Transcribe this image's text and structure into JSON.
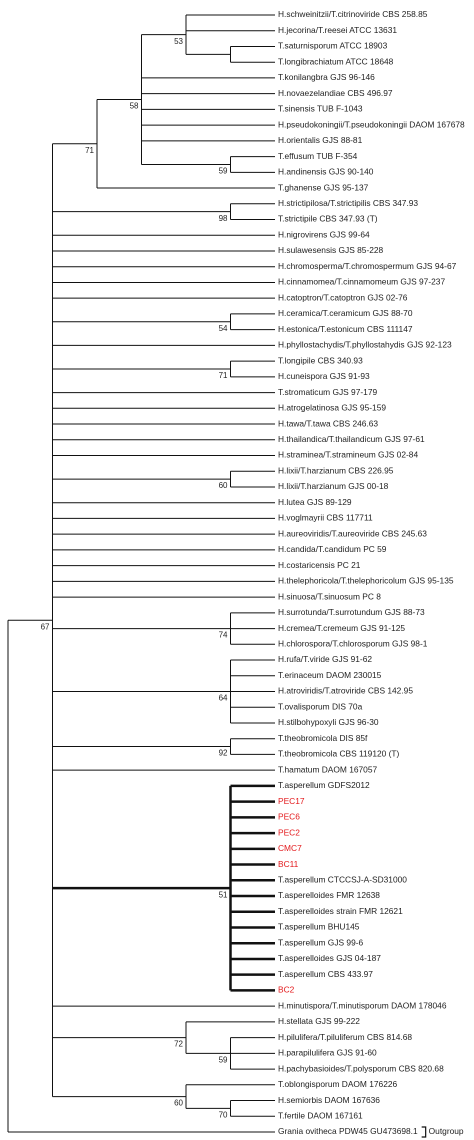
{
  "tree": {
    "outgroup_label": "Outgroup",
    "children": [
      {
        "support": "67",
        "children": [
          {
            "support": "71",
            "children": [
              {
                "support": "58",
                "children": [
                  {
                    "support": "53",
                    "children": [
                      {
                        "label": "H.schweinitzii/T.citrinoviride CBS 258.85"
                      },
                      {
                        "label": "H.jecorina/T.reesei ATCC 13631"
                      },
                      {
                        "children": [
                          {
                            "label": "T.saturnisporum ATCC 18903"
                          },
                          {
                            "label": "T.longibrachiatum ATCC 18648"
                          }
                        ]
                      }
                    ]
                  },
                  {
                    "label": "T.konilangbra GJS 96-146"
                  },
                  {
                    "label": "H.novaezelandiae CBS 496.97"
                  },
                  {
                    "label": "T.sinensis TUB F-1043"
                  },
                  {
                    "label": "H.pseudokoningii/T.pseudokoningii DAOM 167678"
                  },
                  {
                    "label": "H.orientalis GJS 88-81"
                  },
                  {
                    "support": "59",
                    "children": [
                      {
                        "label": "T.effusum TUB F-354"
                      },
                      {
                        "label": "H.andinensis GJS 90-140"
                      }
                    ]
                  }
                ]
              },
              {
                "label": "T.ghanense GJS 95-137"
              }
            ]
          },
          {
            "support": "98",
            "children": [
              {
                "label": "H.strictipilosa/T.strictipilis CBS 347.93"
              },
              {
                "label": "T.strictipile CBS 347.93 (T)"
              }
            ]
          },
          {
            "label": "H.nigrovirens GJS 99-64"
          },
          {
            "label": "H.sulawesensis GJS 85-228"
          },
          {
            "label": "H.chromosperma/T.chromospermum GJS 94-67"
          },
          {
            "label": "H.cinnamomea/T.cinnamomeum GJS 97-237"
          },
          {
            "label": "H.catoptron/T.catoptron GJS 02-76"
          },
          {
            "support": "54",
            "children": [
              {
                "label": "H.ceramica/T.ceramicum GJS 88-70"
              },
              {
                "label": "H.estonica/T.estonicum CBS 111147"
              }
            ]
          },
          {
            "label": "H.phyllostachydis/T.phyllostahydis GJS 92-123"
          },
          {
            "support": "71",
            "children": [
              {
                "label": "T.longipile CBS 340.93"
              },
              {
                "label": "H.cuneispora GJS 91-93"
              }
            ]
          },
          {
            "label": "T.stromaticum GJS 97-179"
          },
          {
            "label": "H.atrogelatinosa GJS 95-159"
          },
          {
            "label": "H.tawa/T.tawa CBS 246.63"
          },
          {
            "label": "H.thailandica/T.thailandicum GJS 97-61"
          },
          {
            "label": "H.straminea/T.stramineum GJS 02-84"
          },
          {
            "support": "60",
            "children": [
              {
                "label": "H.lixii/T.harzianum CBS 226.95"
              },
              {
                "label": "H.lixii/T.harzianum GJS 00-18"
              }
            ]
          },
          {
            "label": "H.lutea GJS 89-129"
          },
          {
            "label": "H.voglmayrii CBS 117711"
          },
          {
            "label": "H.aureoviridis/T.aureoviride CBS 245.63"
          },
          {
            "label": "H.candida/T.candidum PC 59"
          },
          {
            "label": "H.costaricensis PC 21"
          },
          {
            "label": "H.thelephoricola/T.thelephoricolum GJS 95-135"
          },
          {
            "label": "H.sinuosa/T.sinuosum PC 8"
          },
          {
            "support": "74",
            "children": [
              {
                "label": "H.surrotunda/T.surrotundum GJS 88-73"
              },
              {
                "label": "H.cremea/T.cremeum GJS 91-125"
              },
              {
                "label": "H.chlorospora/T.chlorosporum GJS 98-1"
              }
            ]
          },
          {
            "support": "64",
            "children": [
              {
                "label": "H.rufa/T.viride GJS 91-62"
              },
              {
                "label": "T.erinaceum DAOM 230015"
              },
              {
                "label": "H.atroviridis/T.atroviride CBS 142.95"
              },
              {
                "label": "T.ovalisporum DIS 70a"
              },
              {
                "label": "H.stilbohypoxyli GJS 96-30"
              }
            ]
          },
          {
            "support": "92",
            "children": [
              {
                "label": "T.theobromicola DIS 85f"
              },
              {
                "label": "T.theobromicola CBS 119120 (T)"
              }
            ]
          },
          {
            "label": "T.hamatum DAOM 167057"
          },
          {
            "support": "51",
            "bold": true,
            "children": [
              {
                "label": "T.asperellum GDFS2012"
              },
              {
                "label": "PEC17",
                "color": "#e3191c"
              },
              {
                "label": "PEC6",
                "color": "#e3191c"
              },
              {
                "label": "PEC2",
                "color": "#e3191c"
              },
              {
                "label": "CMC7",
                "color": "#e3191c"
              },
              {
                "label": "BC11",
                "color": "#e3191c"
              },
              {
                "label": "T.asperellum CTCCSJ-A-SD31000"
              },
              {
                "label": "T.asperelloides FMR 12638"
              },
              {
                "label": "T.asperelloides strain FMR 12621"
              },
              {
                "label": "T.asperellum BHU145"
              },
              {
                "label": "T.asperellum GJS 99-6"
              },
              {
                "label": "T.asperelloides GJS 04-187"
              },
              {
                "label": "T.asperellum CBS 433.97"
              },
              {
                "label": "BC2",
                "color": "#e3191c"
              }
            ]
          },
          {
            "label": "H.minutispora/T.minutisporum DAOM 178046"
          },
          {
            "support": "72",
            "children": [
              {
                "label": "H.stellata GJS 99-222"
              },
              {
                "support": "59",
                "children": [
                  {
                    "label": "H.pilulifera/T.piluliferum CBS 814.68"
                  },
                  {
                    "label": "H.parapilulifera GJS 91-60"
                  },
                  {
                    "label": "H.pachybasioides/T.polysporum CBS 820.68"
                  }
                ]
              }
            ]
          },
          {
            "support": "60",
            "children": [
              {
                "label": "T.oblongisporum DAOM 176226"
              },
              {
                "support": "70",
                "children": [
                  {
                    "label": "H.semiorbis DAOM 167636"
                  },
                  {
                    "label": "T.fertile DAOM 167161"
                  }
                ]
              }
            ]
          }
        ]
      },
      {
        "label": "Grania ovitheca PDW45 GU473698.1",
        "outgroup": true
      }
    ]
  }
}
